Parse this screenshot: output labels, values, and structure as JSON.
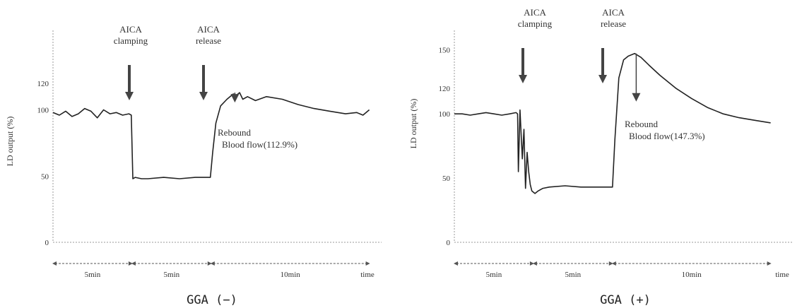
{
  "chart_data": [
    {
      "type": "line",
      "title": "GGA (−)",
      "ylabel": "LD output (%)",
      "xlabel": "time",
      "ylim": [
        0,
        160
      ],
      "xlim": [
        0,
        21
      ],
      "yticks": [
        0,
        50,
        100,
        120
      ],
      "segments": [
        {
          "label": "5min",
          "start": 0,
          "end": 5
        },
        {
          "label": "5min",
          "start": 5,
          "end": 10
        },
        {
          "label": "10min",
          "start": 10,
          "end": 20
        }
      ],
      "annotations": [
        {
          "label": "AICA clamping",
          "x": 5
        },
        {
          "label": "AICA release",
          "x": 10
        },
        {
          "line1": "Rebound",
          "line2": "Blood flow(112.9%)",
          "x": 11.5,
          "y": 113
        }
      ],
      "series": [
        {
          "x": [
            0,
            0.4,
            0.8,
            1.2,
            1.6,
            2.0,
            2.4,
            2.8,
            3.2,
            3.6,
            4.0,
            4.4,
            4.8,
            4.95,
            5.05,
            5.2,
            5.6,
            6,
            7,
            8,
            9,
            9.95,
            10.1,
            10.3,
            10.6,
            11.0,
            11.4,
            11.6,
            11.8,
            12.0,
            12.3,
            12.8,
            13.5,
            14.5,
            15.5,
            16.5,
            17.5,
            18.5,
            19.2,
            19.6,
            20
          ],
          "y": [
            98,
            96,
            99,
            95,
            97,
            101,
            99,
            94,
            100,
            97,
            98,
            96,
            97,
            96,
            48,
            49,
            48,
            48,
            49,
            48,
            49,
            49,
            68,
            90,
            103,
            108,
            112,
            111,
            113,
            108,
            110,
            107,
            110,
            108,
            104,
            101,
            99,
            97,
            98,
            96,
            100
          ]
        }
      ]
    },
    {
      "type": "line",
      "title": "GGA (+)",
      "ylabel": "LD output (%)",
      "xlabel": "time",
      "ylim": [
        0,
        165
      ],
      "xlim": [
        0,
        21
      ],
      "yticks": [
        0,
        50,
        100,
        120,
        150
      ],
      "segments": [
        {
          "label": "5min",
          "start": 0,
          "end": 5
        },
        {
          "label": "5min",
          "start": 5,
          "end": 10
        },
        {
          "label": "10min",
          "start": 10,
          "end": 20
        }
      ],
      "annotations": [
        {
          "label": "AICA clamping",
          "x": 4.8
        },
        {
          "label": "AICA release",
          "x": 10
        },
        {
          "line1": "Rebound",
          "line2": "Blood flow(147.3%)",
          "x": 11.5,
          "y": 147
        }
      ],
      "series": [
        {
          "x": [
            0,
            0.5,
            1,
            1.5,
            2,
            2.5,
            3,
            3.5,
            3.9,
            4.0,
            4.05,
            4.15,
            4.3,
            4.4,
            4.5,
            4.6,
            4.7,
            4.8,
            4.9,
            5.0,
            5.1,
            5.3,
            5.6,
            6,
            7,
            8,
            9,
            9.9,
            10.0,
            10.15,
            10.4,
            10.7,
            11.0,
            11.4,
            11.8,
            12.3,
            13,
            14,
            15,
            16,
            17,
            18,
            19,
            20
          ],
          "y": [
            100,
            100,
            99,
            100,
            101,
            100,
            99,
            100,
            101,
            100,
            55,
            103,
            65,
            88,
            42,
            70,
            55,
            45,
            40,
            39,
            38,
            40,
            42,
            43,
            44,
            43,
            43,
            43,
            43,
            80,
            128,
            142,
            145,
            147,
            144,
            138,
            130,
            120,
            112,
            105,
            100,
            97,
            95,
            93
          ]
        }
      ]
    }
  ]
}
